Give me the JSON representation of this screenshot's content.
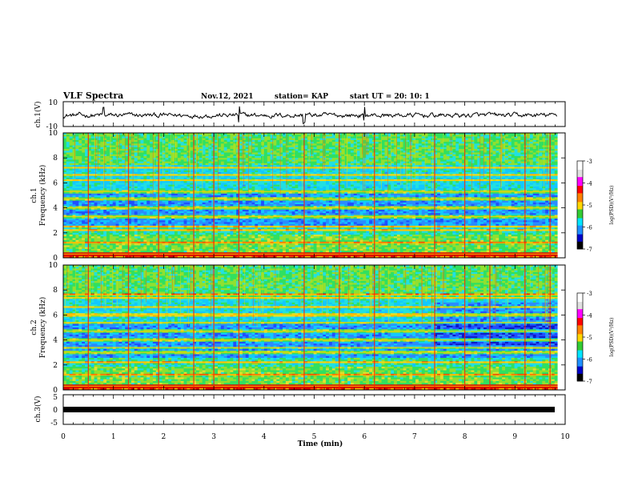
{
  "header": {
    "title": "VLF Spectra",
    "date": "Nov.12, 2021",
    "station": "station= KAP",
    "start": "start  UT =   20: 10: 1"
  },
  "colorbar": {
    "label": "log(PSD)(V²/Hz)",
    "ticks": [
      "-3",
      "-4",
      "-5",
      "-6",
      "-7"
    ],
    "range": [
      -7,
      -3
    ],
    "colors": [
      "#000000",
      "#0000c8",
      "#1e90ff",
      "#00e5ff",
      "#33d633",
      "#ffd700",
      "#ff8c00",
      "#ff0000",
      "#c800c8",
      "#ffffff"
    ]
  },
  "chart_data": [
    {
      "type": "line",
      "panel": "ch1-waveform",
      "ylabel": "ch.1(V)",
      "ylim": [
        -10,
        10
      ],
      "ytick_labels": [
        "10",
        "-10"
      ],
      "xlim": [
        0,
        10
      ],
      "description_values": "noisy waveform around -1 V, amplitude about ±4 V, with spikes near 0.8, 3.5, 6.0 min"
    },
    {
      "type": "heatmap",
      "panel": "ch1-spectrogram",
      "ylabel": "ch.1\nFrequency (kHz)",
      "ylim": [
        0,
        10
      ],
      "ytick_labels": [
        "0",
        "2",
        "4",
        "6",
        "8",
        "10"
      ],
      "xlim": [
        0,
        9.85
      ],
      "bands_khz": [
        0.3,
        1.2,
        2.2,
        2.5,
        3.3,
        4.0,
        4.7,
        5.3,
        6.2,
        6.6,
        7.2
      ],
      "sferic_times_min": [
        0.5,
        1.3,
        1.9,
        2.6,
        3.0,
        3.5,
        4.8,
        5.5,
        6.2,
        7.4,
        8.0,
        8.5,
        9.2,
        9.7
      ]
    },
    {
      "type": "heatmap",
      "panel": "ch2-spectrogram",
      "ylabel": "ch.2\nFrequency (kHz)",
      "ylim": [
        0,
        10
      ],
      "ytick_labels": [
        "0",
        "2",
        "4",
        "6",
        "8",
        "10"
      ],
      "xlim": [
        0,
        9.85
      ],
      "bands_khz": [
        0.3,
        1.2,
        2.2,
        3.0,
        3.4,
        4.0,
        4.7,
        5.4,
        6.0,
        6.6,
        7.4,
        7.6
      ],
      "sferic_times_min": [
        0.5,
        1.3,
        1.9,
        2.6,
        3.0,
        3.5,
        4.8,
        5.5,
        6.2,
        7.4,
        8.0,
        8.5,
        9.2,
        9.7
      ]
    },
    {
      "type": "line",
      "panel": "ch3-waveform",
      "ylabel": "ch.3(V)",
      "ylim": [
        -5,
        5
      ],
      "ytick_labels": [
        "5",
        "0",
        "-5"
      ],
      "xlim": [
        0,
        10
      ],
      "description_values": "dense thick band centred near -1 V over 0–9.8 min"
    }
  ],
  "xaxis": {
    "label": "Time  (min)",
    "ticks": [
      "0",
      "1",
      "2",
      "3",
      "4",
      "5",
      "6",
      "7",
      "8",
      "9",
      "10"
    ],
    "range": [
      0,
      10
    ]
  }
}
